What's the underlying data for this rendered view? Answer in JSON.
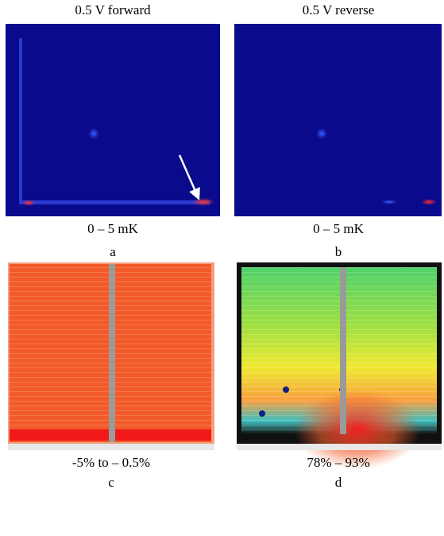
{
  "panels": [
    {
      "title": "0.5 V forward",
      "range": "0 – 5 mK",
      "label": "a"
    },
    {
      "title": "0.5 V reverse",
      "range": "0 – 5 mK",
      "label": "b"
    },
    {
      "range": "-5% to – 0.5%",
      "label": "c"
    },
    {
      "range": "78% – 93%",
      "label": "d"
    }
  ]
}
